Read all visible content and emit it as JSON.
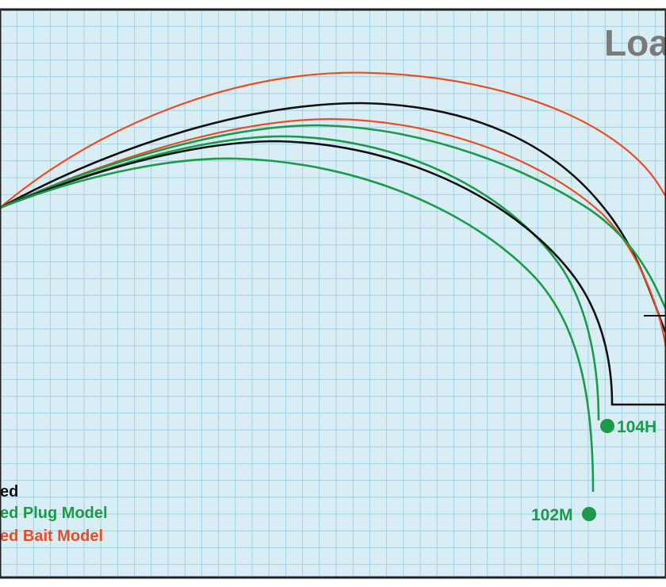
{
  "title": "Loa",
  "colors": {
    "background": "#d8eef4",
    "grid": "#9fd2e6",
    "border": "#222222",
    "black": "#111111",
    "green": "#1b9a4b",
    "red": "#ee4a23",
    "title": "#7a7a7a"
  },
  "legend": {
    "items": [
      {
        "label": "ed",
        "color": "black"
      },
      {
        "label": "ed Plug Model",
        "color": "green"
      },
      {
        "label": "ed Bait Model",
        "color": "red"
      }
    ]
  },
  "markers": {
    "m104h": {
      "label": "104H",
      "color": "green"
    },
    "m102m": {
      "label": "102M",
      "color": "green"
    }
  },
  "curves": [
    {
      "name": "red-outer",
      "color": "red"
    },
    {
      "name": "black-upper",
      "color": "black"
    },
    {
      "name": "red-inner",
      "color": "red"
    },
    {
      "name": "green-upper",
      "color": "green"
    },
    {
      "name": "green-middle",
      "color": "green"
    },
    {
      "name": "black-lower",
      "color": "black"
    },
    {
      "name": "green-lower",
      "color": "green"
    }
  ]
}
